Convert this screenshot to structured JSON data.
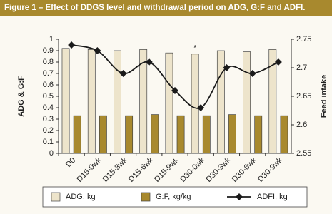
{
  "chart_data": {
    "type": "bar-line",
    "title": "Figure 1 – Effect of DDGS level and withdrawal period on ADG, G:F and ADFI.",
    "categories": [
      "D0",
      "D15-0wk",
      "D15-3wk",
      "D15-6wk",
      "D15-9wk",
      "D30-0wk",
      "D30-3wk",
      "D30-6wk",
      "D30-9wk"
    ],
    "series": [
      {
        "name": "ADG, kg",
        "type": "bar",
        "color": "#ede4cb",
        "values": [
          0.92,
          0.91,
          0.9,
          0.91,
          0.88,
          0.87,
          0.9,
          0.89,
          0.91
        ]
      },
      {
        "name": "G:F, kg/kg",
        "type": "bar",
        "color": "#a8892e",
        "values": [
          0.33,
          0.33,
          0.33,
          0.34,
          0.33,
          0.33,
          0.34,
          0.33,
          0.33
        ]
      },
      {
        "name": "ADFI, kg",
        "type": "line",
        "axis": "y2",
        "color": "#1a1a1a",
        "values": [
          2.74,
          2.73,
          2.69,
          2.71,
          2.66,
          2.63,
          2.7,
          2.69,
          2.71
        ]
      }
    ],
    "ylabel": "ADG & G:F",
    "y2label": "Feed intake",
    "ylim": [
      0,
      1
    ],
    "yticks": [
      0,
      0.1,
      0.2,
      0.3,
      0.4,
      0.5,
      0.6,
      0.7,
      0.8,
      0.9,
      1
    ],
    "y2lim": [
      2.55,
      2.75
    ],
    "y2ticks": [
      2.55,
      2.6,
      2.65,
      2.7,
      2.75
    ],
    "annotations": [
      {
        "text": "*",
        "category": "D30-0wk"
      }
    ],
    "legend": "bottom",
    "grid": false
  }
}
